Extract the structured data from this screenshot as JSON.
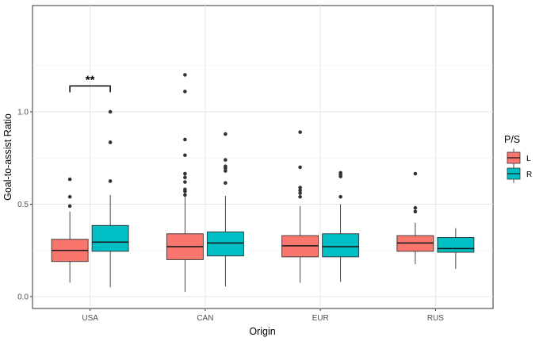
{
  "chart_data": {
    "type": "boxplot",
    "xlabel": "Origin",
    "ylabel": "Goal-to-assist Ratio",
    "categories": [
      "USA",
      "CAN",
      "EUR",
      "RUS"
    ],
    "ylim": [
      -0.05,
      1.52
    ],
    "yticks": [
      0.0,
      0.5,
      1.0
    ],
    "ytick_labels": [
      "0.0",
      "0.5",
      "1.0"
    ],
    "grid": true,
    "legend": {
      "title": "P/S",
      "position": "right",
      "entries": [
        {
          "label": "L",
          "color": "#F8766D"
        },
        {
          "label": "R",
          "color": "#00BFC4"
        }
      ]
    },
    "series": [
      {
        "group": "L",
        "color": "#F8766D",
        "boxes": [
          {
            "q1": 0.19,
            "median": 0.25,
            "q3": 0.31,
            "whisker_low": 0.075,
            "whisker_high": 0.46,
            "outliers": [
              0.49,
              0.54,
              0.635
            ]
          },
          {
            "q1": 0.2,
            "median": 0.27,
            "q3": 0.34,
            "whisker_low": 0.025,
            "whisker_high": 0.54,
            "outliers": [
              0.55,
              0.57,
              0.58,
              0.62,
              0.645,
              0.665,
              0.765,
              0.85,
              1.11,
              1.2
            ]
          },
          {
            "q1": 0.215,
            "median": 0.275,
            "q3": 0.33,
            "whisker_low": 0.075,
            "whisker_high": 0.49,
            "outliers": [
              0.54,
              0.56,
              0.575,
              0.59,
              0.7,
              0.89
            ]
          },
          {
            "q1": 0.245,
            "median": 0.29,
            "q3": 0.33,
            "whisker_low": 0.175,
            "whisker_high": 0.4,
            "outliers": [
              0.46,
              0.48,
              0.665
            ]
          }
        ]
      },
      {
        "group": "R",
        "color": "#00BFC4",
        "boxes": [
          {
            "q1": 0.245,
            "median": 0.295,
            "q3": 0.385,
            "whisker_low": 0.05,
            "whisker_high": 0.55,
            "outliers": [
              0.625,
              0.835,
              1.0
            ]
          },
          {
            "q1": 0.22,
            "median": 0.29,
            "q3": 0.35,
            "whisker_low": 0.055,
            "whisker_high": 0.545,
            "outliers": [
              0.615,
              0.68,
              0.695,
              0.705,
              0.74,
              0.88
            ]
          },
          {
            "q1": 0.215,
            "median": 0.27,
            "q3": 0.34,
            "whisker_low": 0.08,
            "whisker_high": 0.5,
            "outliers": [
              0.54,
              0.65,
              0.66,
              0.67
            ]
          },
          {
            "q1": 0.24,
            "median": 0.26,
            "q3": 0.32,
            "whisker_low": 0.15,
            "whisker_high": 0.37,
            "outliers": []
          }
        ]
      }
    ],
    "annotations": [
      {
        "text": "**",
        "category": "USA",
        "bracket_y": 1.14
      }
    ]
  }
}
